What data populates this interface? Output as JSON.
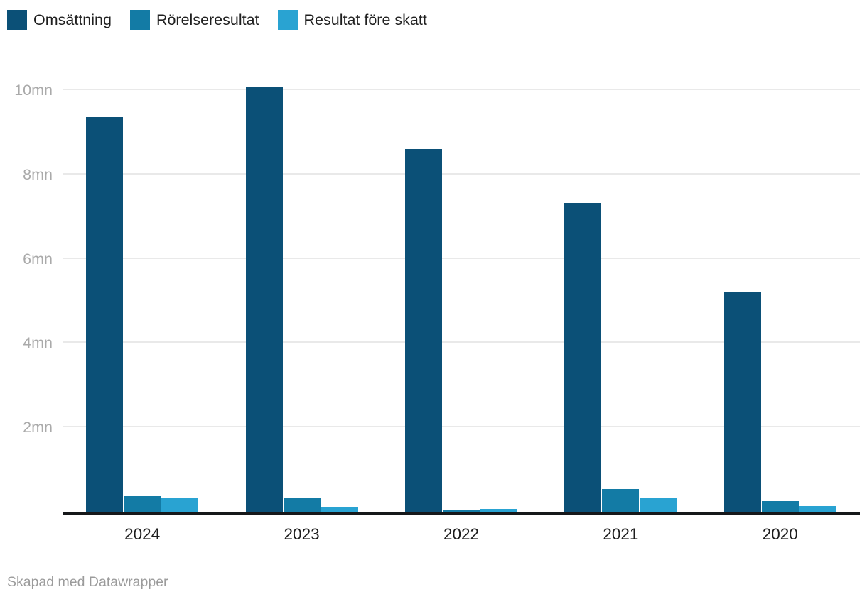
{
  "legend": {
    "items": [
      {
        "label": "Omsättning",
        "color": "#0b5077"
      },
      {
        "label": "Rörelseresultat",
        "color": "#137ba5"
      },
      {
        "label": "Resultat före skatt",
        "color": "#29a3d2"
      }
    ]
  },
  "footer": {
    "credit": "Skapad med Datawrapper"
  },
  "colors": {
    "series1": "#0b5077",
    "series2": "#137ba5",
    "series3": "#29a3d2",
    "gridline": "#e9e9e9",
    "axis": "#16181a",
    "y_tick_text": "#aaaaaa",
    "x_tick_text": "#1d1d1d",
    "footer_text": "#9b9b9b"
  },
  "chart_data": {
    "type": "bar",
    "title": "",
    "xlabel": "",
    "ylabel": "",
    "unit": "mn",
    "categories": [
      "2024",
      "2023",
      "2022",
      "2021",
      "2020"
    ],
    "series": [
      {
        "name": "Omsättning",
        "color": "#0b5077",
        "values": [
          9.37,
          10.09,
          8.62,
          7.34,
          5.24
        ]
      },
      {
        "name": "Rörelseresultat",
        "color": "#137ba5",
        "values": [
          0.38,
          0.34,
          0.07,
          0.55,
          0.27
        ]
      },
      {
        "name": "Resultat före skatt",
        "color": "#29a3d2",
        "values": [
          0.33,
          0.13,
          0.08,
          0.36,
          0.15
        ]
      }
    ],
    "y_ticks": [
      2,
      4,
      6,
      8,
      10
    ],
    "y_tick_labels": [
      "2mn",
      "4mn",
      "6mn",
      "8mn",
      "10mn"
    ],
    "ylim": [
      0,
      10.5
    ],
    "grid": true,
    "legend_position": "top-left"
  }
}
